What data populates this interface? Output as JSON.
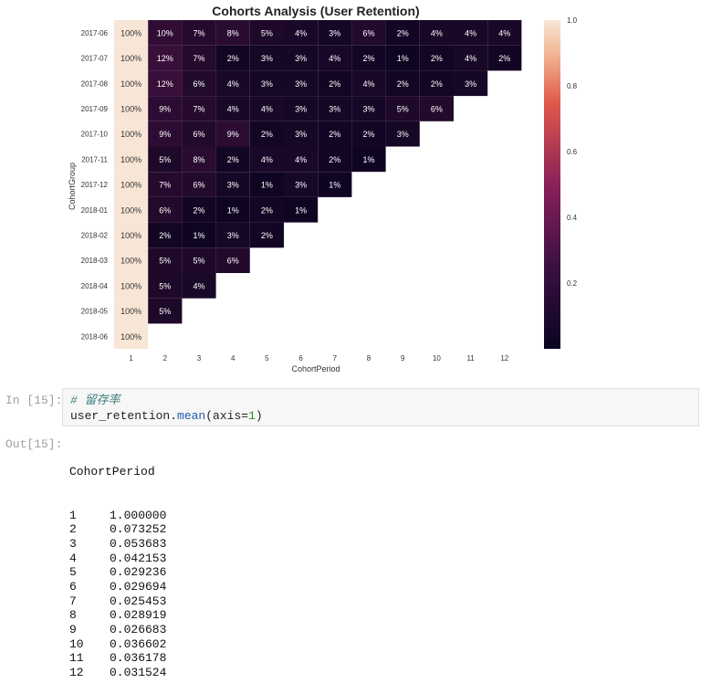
{
  "chart_data": {
    "type": "heatmap",
    "title": "Cohorts Analysis (User Retention)",
    "xlabel": "CohortPeriod",
    "ylabel": "CohortGroup",
    "x": [
      "1",
      "2",
      "3",
      "4",
      "5",
      "6",
      "7",
      "8",
      "9",
      "10",
      "11",
      "12"
    ],
    "y": [
      "2017-06",
      "2017-07",
      "2017-08",
      "2017-09",
      "2017-10",
      "2017-11",
      "2017-12",
      "2018-01",
      "2018-02",
      "2018-03",
      "2018-04",
      "2018-05",
      "2018-06"
    ],
    "cells": [
      [
        "100%",
        "10%",
        "7%",
        "8%",
        "5%",
        "4%",
        "3%",
        "6%",
        "2%",
        "4%",
        "4%",
        "4%"
      ],
      [
        "100%",
        "12%",
        "7%",
        "2%",
        "3%",
        "3%",
        "4%",
        "2%",
        "1%",
        "2%",
        "4%",
        "2%"
      ],
      [
        "100%",
        "12%",
        "6%",
        "4%",
        "3%",
        "3%",
        "2%",
        "4%",
        "2%",
        "2%",
        "3%"
      ],
      [
        "100%",
        "9%",
        "7%",
        "4%",
        "4%",
        "3%",
        "3%",
        "3%",
        "5%",
        "6%"
      ],
      [
        "100%",
        "9%",
        "6%",
        "9%",
        "2%",
        "3%",
        "2%",
        "2%",
        "3%"
      ],
      [
        "100%",
        "5%",
        "8%",
        "2%",
        "4%",
        "4%",
        "2%",
        "1%"
      ],
      [
        "100%",
        "7%",
        "6%",
        "3%",
        "1%",
        "3%",
        "1%"
      ],
      [
        "100%",
        "6%",
        "2%",
        "1%",
        "2%",
        "1%"
      ],
      [
        "100%",
        "2%",
        "1%",
        "3%",
        "2%"
      ],
      [
        "100%",
        "5%",
        "5%",
        "6%"
      ],
      [
        "100%",
        "5%",
        "4%"
      ],
      [
        "100%",
        "5%"
      ],
      [
        "100%"
      ]
    ],
    "colorbar": {
      "ticks": [
        "0.2",
        "0.4",
        "0.6",
        "0.8",
        "1.0"
      ],
      "min": 0,
      "max": 1
    },
    "colors": {
      "low": "#0b0420",
      "mid": "#7a1f5c",
      "high": "#f7e6d6"
    }
  },
  "notebook": {
    "in_prompt": "In [15]:",
    "comment": "# 留存率",
    "code_obj": "user_retention.",
    "code_fn": "mean",
    "code_args_open": "(axis=",
    "code_arg_num": "1",
    "code_args_close": ")",
    "out_prompt": "Out[15]:",
    "output_header": "CohortPeriod",
    "output_rows": [
      {
        "key": "1",
        "value": "1.000000"
      },
      {
        "key": "2",
        "value": "0.073252"
      },
      {
        "key": "3",
        "value": "0.053683"
      },
      {
        "key": "4",
        "value": "0.042153"
      },
      {
        "key": "5",
        "value": "0.029236"
      },
      {
        "key": "6",
        "value": "0.029694"
      },
      {
        "key": "7",
        "value": "0.025453"
      },
      {
        "key": "8",
        "value": "0.028919"
      },
      {
        "key": "9",
        "value": "0.026683"
      },
      {
        "key": "10",
        "value": "0.036602"
      },
      {
        "key": "11",
        "value": "0.036178"
      },
      {
        "key": "12",
        "value": "0.031524"
      }
    ]
  }
}
